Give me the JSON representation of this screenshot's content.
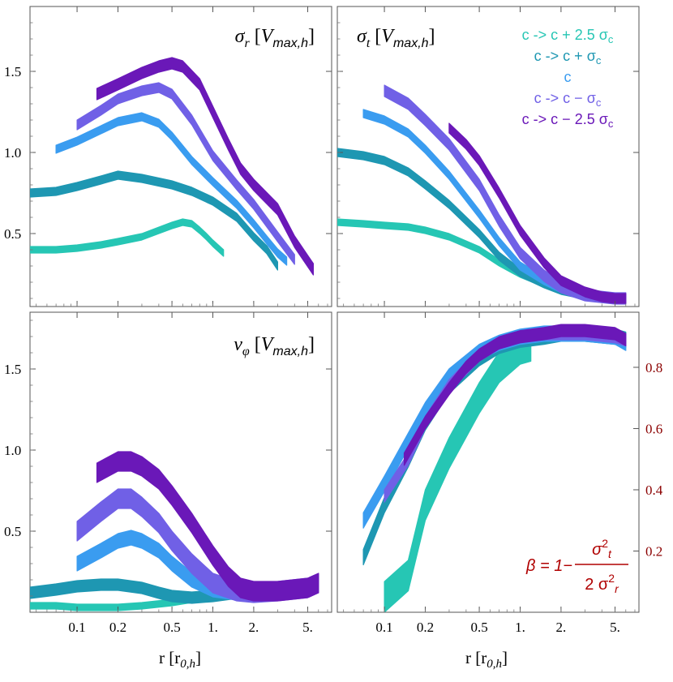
{
  "chart_data": {
    "type": "line",
    "layout": "2x2 panel grid",
    "x_scale": "log",
    "xlabel": "r [r0,h]",
    "xlabel_parts": {
      "main": "r [r",
      "sub": "0,h",
      "close": "]"
    },
    "xlim": [
      0.045,
      7.5
    ],
    "x_ticks": [
      0.1,
      0.2,
      0.5,
      1,
      2,
      5
    ],
    "x_tick_labels": [
      "0.1",
      "0.2",
      "0.5",
      "1.",
      "2.",
      "5."
    ],
    "left_y_ticks": [
      0.5,
      1.0,
      1.5
    ],
    "left_y_tick_labels": [
      "0.5",
      "1.0",
      "1.5"
    ],
    "right_y_ticks": [
      0.2,
      0.4,
      0.6,
      0.8
    ],
    "right_y_tick_labels": [
      "0.2",
      "0.4",
      "0.6",
      "0.8"
    ],
    "series_names": [
      "c -> c + 2.5 σc",
      "c -> c + σc",
      "c",
      "c -> c − σc",
      "c -> c − 2.5 σc"
    ],
    "series_colors": [
      "#26c6b4",
      "#1e97b2",
      "#3a9cf0",
      "#7060e6",
      "#6a18b8"
    ],
    "legend": {
      "position": "top-right",
      "entries": [
        {
          "text": "c -> c + 2.5 σ",
          "sub": "c",
          "color": "#26c6b4"
        },
        {
          "text": "c -> c + σ",
          "sub": "c",
          "color": "#1e97b2"
        },
        {
          "text": "c",
          "sub": "",
          "color": "#3a9cf0"
        },
        {
          "text": "c -> c − σ",
          "sub": "c",
          "color": "#7060e6"
        },
        {
          "text": "c -> c − 2.5 σ",
          "sub": "c",
          "color": "#6a18b8"
        }
      ]
    },
    "panels": [
      {
        "id": "sigma_r",
        "title": "σr [Vmax,h]",
        "title_parts": {
          "sym": "σ",
          "sym_sub": "r",
          "unit": "V",
          "unit_sub": "max,h"
        },
        "ylim": [
          0.05,
          1.9
        ],
        "series": [
          {
            "name": "c -> c + 2.5 σc",
            "width": 0.04,
            "x": [
              0.045,
              0.07,
              0.1,
              0.15,
              0.2,
              0.3,
              0.4,
              0.5,
              0.6,
              0.7,
              0.8,
              0.9,
              1.0,
              1.2
            ],
            "y": [
              0.4,
              0.4,
              0.41,
              0.43,
              0.45,
              0.48,
              0.52,
              0.55,
              0.57,
              0.56,
              0.52,
              0.48,
              0.44,
              0.38
            ]
          },
          {
            "name": "c -> c + σc",
            "width": 0.05,
            "x": [
              0.045,
              0.07,
              0.1,
              0.15,
              0.2,
              0.3,
              0.5,
              0.7,
              1.0,
              1.5,
              2.0,
              2.5,
              3.0
            ],
            "y": [
              0.75,
              0.76,
              0.79,
              0.83,
              0.86,
              0.84,
              0.8,
              0.76,
              0.7,
              0.6,
              0.48,
              0.4,
              0.3
            ]
          },
          {
            "name": "c",
            "width": 0.05,
            "x": [
              0.07,
              0.1,
              0.15,
              0.2,
              0.3,
              0.4,
              0.5,
              0.7,
              1.0,
              1.5,
              2.0,
              2.5,
              3.0,
              3.5
            ],
            "y": [
              1.02,
              1.07,
              1.14,
              1.19,
              1.22,
              1.18,
              1.1,
              0.95,
              0.82,
              0.68,
              0.56,
              0.46,
              0.38,
              0.33
            ]
          },
          {
            "name": "c -> c − σc",
            "width": 0.06,
            "x": [
              0.1,
              0.15,
              0.2,
              0.3,
              0.4,
              0.5,
              0.7,
              1.0,
              1.5,
              2.0,
              3.0,
              4.0
            ],
            "y": [
              1.17,
              1.26,
              1.33,
              1.38,
              1.4,
              1.36,
              1.2,
              0.98,
              0.8,
              0.68,
              0.48,
              0.34
            ]
          },
          {
            "name": "c -> c − 2.5 σc",
            "width": 0.07,
            "x": [
              0.14,
              0.2,
              0.3,
              0.4,
              0.5,
              0.6,
              0.8,
              1.0,
              1.3,
              1.6,
              2.0,
              3.0,
              4.0,
              5.5
            ],
            "y": [
              1.36,
              1.42,
              1.49,
              1.53,
              1.55,
              1.53,
              1.42,
              1.25,
              1.05,
              0.9,
              0.8,
              0.65,
              0.45,
              0.28
            ]
          }
        ]
      },
      {
        "id": "sigma_t",
        "title": "σt [Vmax,h]",
        "title_parts": {
          "sym": "σ",
          "sym_sub": "t",
          "unit": "V",
          "unit_sub": "max,h"
        },
        "ylim": [
          0.05,
          1.9
        ],
        "series": [
          {
            "name": "c -> c + 2.5 σc",
            "width": 0.04,
            "x": [
              0.045,
              0.07,
              0.1,
              0.15,
              0.2,
              0.3,
              0.5,
              0.7,
              1.0,
              1.5,
              2.0,
              3.0,
              5.0,
              6.0
            ],
            "y": [
              0.57,
              0.56,
              0.55,
              0.54,
              0.52,
              0.48,
              0.4,
              0.32,
              0.25,
              0.19,
              0.15,
              0.12,
              0.1,
              0.1
            ]
          },
          {
            "name": "c -> c + σc",
            "width": 0.05,
            "x": [
              0.045,
              0.07,
              0.1,
              0.15,
              0.2,
              0.3,
              0.5,
              0.7,
              1.0,
              1.5,
              2.0,
              3.0,
              5.0,
              6.0
            ],
            "y": [
              1.0,
              0.98,
              0.95,
              0.88,
              0.8,
              0.68,
              0.5,
              0.36,
              0.26,
              0.19,
              0.15,
              0.12,
              0.1,
              0.1
            ]
          },
          {
            "name": "c",
            "width": 0.05,
            "x": [
              0.07,
              0.1,
              0.15,
              0.2,
              0.3,
              0.5,
              0.7,
              1.0,
              1.5,
              2.0,
              3.0,
              5.0,
              6.0
            ],
            "y": [
              1.24,
              1.2,
              1.12,
              1.02,
              0.86,
              0.62,
              0.45,
              0.3,
              0.21,
              0.16,
              0.12,
              0.1,
              0.1
            ]
          },
          {
            "name": "c -> c − σc",
            "width": 0.07,
            "x": [
              0.1,
              0.15,
              0.2,
              0.3,
              0.5,
              0.7,
              1.0,
              1.5,
              2.0,
              3.0,
              5.0,
              6.0
            ],
            "y": [
              1.38,
              1.3,
              1.2,
              1.05,
              0.8,
              0.58,
              0.38,
              0.24,
              0.17,
              0.12,
              0.1,
              0.1
            ]
          },
          {
            "name": "c -> c − 2.5 σc",
            "width": 0.06,
            "x": [
              0.3,
              0.4,
              0.5,
              0.7,
              1.0,
              1.5,
              2.0,
              3.0,
              4.0,
              5.0,
              6.0
            ],
            "y": [
              1.15,
              1.05,
              0.95,
              0.75,
              0.52,
              0.32,
              0.21,
              0.14,
              0.11,
              0.1,
              0.1
            ]
          }
        ]
      },
      {
        "id": "v_phi",
        "title": "vφ [Vmax,h]",
        "title_parts": {
          "sym": "v",
          "sym_sub": "φ",
          "unit": "V",
          "unit_sub": "max,h"
        },
        "ylim": [
          0.0,
          1.85
        ],
        "series": [
          {
            "name": "c -> c + 2.5 σc",
            "width": 0.04,
            "x": [
              0.045,
              0.07,
              0.1,
              0.15,
              0.2,
              0.3,
              0.5,
              0.7,
              1.0,
              1.5,
              2.0,
              3.0,
              5.0,
              6.0
            ],
            "y": [
              0.04,
              0.04,
              0.03,
              0.03,
              0.03,
              0.04,
              0.06,
              0.08,
              0.1,
              0.12,
              0.13,
              0.14,
              0.15,
              0.17
            ]
          },
          {
            "name": "c -> c + σc",
            "width": 0.07,
            "x": [
              0.045,
              0.07,
              0.1,
              0.15,
              0.2,
              0.3,
              0.4,
              0.5,
              0.7,
              1.0,
              1.5,
              2.0,
              3.0,
              5.0,
              6.0
            ],
            "y": [
              0.12,
              0.14,
              0.16,
              0.17,
              0.17,
              0.15,
              0.12,
              0.1,
              0.09,
              0.1,
              0.12,
              0.13,
              0.14,
              0.15,
              0.18
            ]
          },
          {
            "name": "c",
            "width": 0.09,
            "x": [
              0.1,
              0.15,
              0.2,
              0.25,
              0.3,
              0.4,
              0.5,
              0.7,
              1.0,
              1.5,
              2.0,
              3.0,
              5.0,
              6.0
            ],
            "y": [
              0.3,
              0.38,
              0.44,
              0.46,
              0.44,
              0.38,
              0.3,
              0.2,
              0.14,
              0.12,
              0.12,
              0.13,
              0.15,
              0.18
            ]
          },
          {
            "name": "c -> c − σc",
            "width": 0.12,
            "x": [
              0.1,
              0.15,
              0.2,
              0.25,
              0.3,
              0.4,
              0.5,
              0.7,
              1.0,
              1.5,
              2.0,
              3.0,
              5.0,
              6.0
            ],
            "y": [
              0.5,
              0.62,
              0.7,
              0.7,
              0.65,
              0.55,
              0.44,
              0.3,
              0.18,
              0.13,
              0.12,
              0.13,
              0.15,
              0.18
            ]
          },
          {
            "name": "c -> c − 2.5 σc",
            "width": 0.12,
            "x": [
              0.14,
              0.2,
              0.25,
              0.3,
              0.4,
              0.5,
              0.7,
              1.0,
              1.3,
              1.6,
              2.0,
              3.0,
              5.0,
              6.0
            ],
            "y": [
              0.86,
              0.93,
              0.93,
              0.9,
              0.82,
              0.72,
              0.55,
              0.35,
              0.22,
              0.15,
              0.13,
              0.13,
              0.15,
              0.18
            ]
          }
        ]
      },
      {
        "id": "beta",
        "title": "β = 1 − σt² / (2 σr²)",
        "formula": {
          "beta": "β = 1−",
          "num": "σ",
          "num_sup": "2",
          "num_sub": "t",
          "den": "2 σ",
          "den_sup": "2",
          "den_sub": "r"
        },
        "y_axis_side": "right",
        "ylim": [
          0.0,
          0.98
        ],
        "series": [
          {
            "name": "c -> c + 2.5 σc",
            "width": 0.1,
            "x": [
              0.1,
              0.15,
              0.2,
              0.3,
              0.5,
              0.7,
              1.0,
              1.2
            ],
            "y": [
              0.05,
              0.12,
              0.35,
              0.52,
              0.7,
              0.8,
              0.86,
              0.87
            ]
          },
          {
            "name": "c -> c + σc",
            "width": 0.05,
            "x": [
              0.07,
              0.1,
              0.15,
              0.2,
              0.3,
              0.5,
              0.7,
              1.0,
              1.5,
              2.0,
              3.0,
              5.0,
              6.0
            ],
            "y": [
              0.18,
              0.35,
              0.5,
              0.62,
              0.74,
              0.83,
              0.87,
              0.89,
              0.9,
              0.91,
              0.91,
              0.9,
              0.89
            ]
          },
          {
            "name": "c",
            "width": 0.05,
            "x": [
              0.07,
              0.1,
              0.15,
              0.2,
              0.3,
              0.5,
              0.7,
              1.0,
              1.5,
              2.0,
              3.0,
              5.0,
              6.0
            ],
            "y": [
              0.3,
              0.42,
              0.56,
              0.66,
              0.77,
              0.85,
              0.88,
              0.9,
              0.91,
              0.91,
              0.91,
              0.9,
              0.88
            ]
          },
          {
            "name": "c -> c − σc",
            "width": 0.04,
            "x": [
              0.1,
              0.15,
              0.2,
              0.3,
              0.5,
              0.7,
              1.0,
              1.5,
              2.0,
              3.0,
              5.0,
              6.0
            ],
            "y": [
              0.38,
              0.5,
              0.62,
              0.74,
              0.84,
              0.88,
              0.9,
              0.91,
              0.91,
              0.91,
              0.9,
              0.89
            ]
          },
          {
            "name": "c -> c − 2.5 σc",
            "width": 0.04,
            "x": [
              0.14,
              0.2,
              0.3,
              0.4,
              0.5,
              0.7,
              1.0,
              1.5,
              2.0,
              3.0,
              5.0,
              6.0
            ],
            "y": [
              0.5,
              0.62,
              0.73,
              0.8,
              0.84,
              0.88,
              0.9,
              0.91,
              0.92,
              0.92,
              0.91,
              0.89
            ]
          }
        ]
      }
    ]
  }
}
